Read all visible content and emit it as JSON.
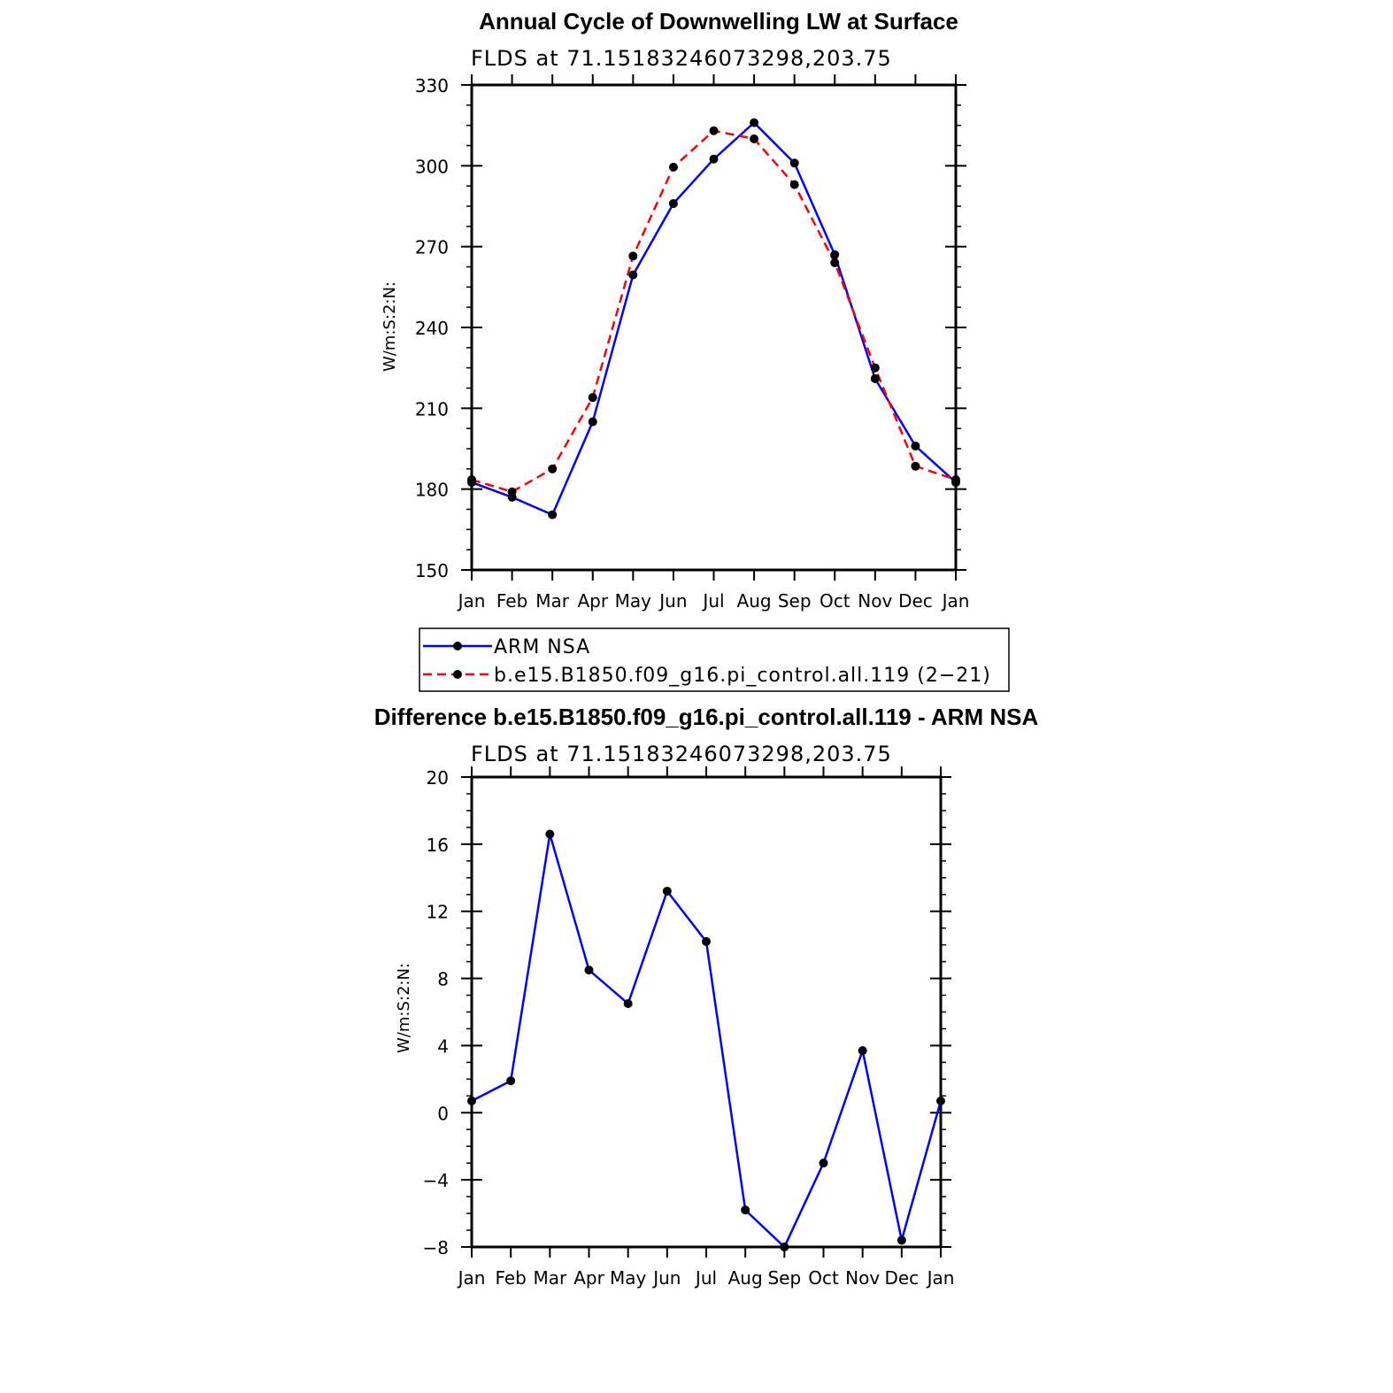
{
  "chart_data": [
    {
      "type": "line",
      "title": "Annual Cycle of Downwelling LW at Surface",
      "subtitle": "FLDS at 71.15183246073298,203.75",
      "ylabel": "W/m:S:2:N:",
      "xlabel": "",
      "categories": [
        "Jan",
        "Feb",
        "Mar",
        "Apr",
        "May",
        "Jun",
        "Jul",
        "Aug",
        "Sep",
        "Oct",
        "Nov",
        "Dec",
        "Jan"
      ],
      "ylim": [
        150,
        330
      ],
      "yticks": [
        150,
        180,
        210,
        240,
        270,
        300,
        330
      ],
      "series": [
        {
          "name": "ARM NSA",
          "color": "#0000ff",
          "dash": "solid",
          "values": [
            182.5,
            177,
            170.5,
            205,
            259.5,
            286,
            302.5,
            316,
            301,
            267,
            221,
            196,
            182.5
          ]
        },
        {
          "name": "b.e15.B1850.f09_g16.pi_control.all.119 (2−21)",
          "color": "#ff0000",
          "dash": "dashed",
          "values": [
            183.5,
            179,
            187.5,
            214,
            266.5,
            299.5,
            313,
            310,
            293,
            264,
            225,
            188.5,
            183.5
          ]
        }
      ],
      "legend": "bottom"
    },
    {
      "type": "line",
      "title": "Difference b.e15.B1850.f09_g16.pi_control.all.119 - ARM NSA",
      "subtitle": "FLDS at 71.15183246073298,203.75",
      "ylabel": "W/m:S:2:N:",
      "xlabel": "",
      "categories": [
        "Jan",
        "Feb",
        "Mar",
        "Apr",
        "May",
        "Jun",
        "Jul",
        "Aug",
        "Sep",
        "Oct",
        "Nov",
        "Dec",
        "Jan"
      ],
      "ylim": [
        -8,
        20
      ],
      "yticks": [
        -8,
        -4,
        0,
        4,
        8,
        12,
        16,
        20
      ],
      "ytick_labels": [
        "−8",
        "−4",
        "0",
        "4",
        "8",
        "12",
        "16",
        "20"
      ],
      "series": [
        {
          "color": "#0000ff",
          "dash": "solid",
          "values": [
            0.7,
            1.9,
            16.6,
            8.5,
            6.5,
            13.2,
            10.2,
            -5.8,
            -8.0,
            -3.0,
            3.7,
            -7.6,
            0.7
          ]
        }
      ]
    }
  ]
}
